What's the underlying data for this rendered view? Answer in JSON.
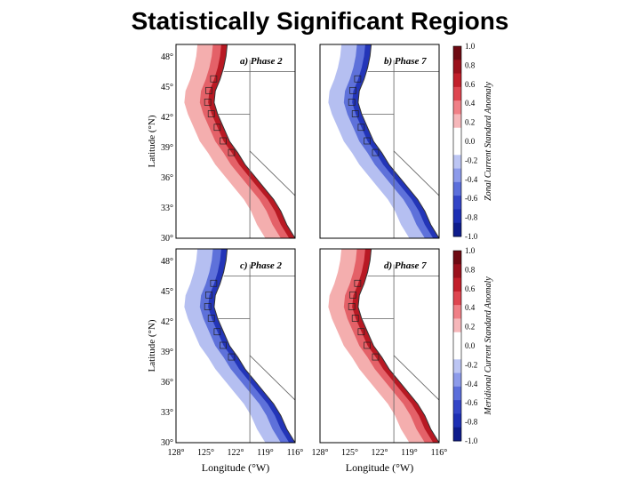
{
  "title": "Statistically Significant Regions",
  "panels": [
    {
      "label": "a) Phase 2",
      "component": "zonal",
      "pattern": "positive"
    },
    {
      "label": "b) Phase 7",
      "component": "zonal",
      "pattern": "negative"
    },
    {
      "label": "c) Phase 2",
      "component": "meridional",
      "pattern": "negative"
    },
    {
      "label": "d) Phase 7",
      "component": "meridional",
      "pattern": "positive"
    }
  ],
  "axes": {
    "ylabel": "Latitude (°N)",
    "xlabel": "Longitude (°W)",
    "lat_ticks": [
      "48°",
      "45°",
      "42°",
      "39°",
      "36°",
      "33°",
      "30°"
    ],
    "lon_ticks": [
      "128°",
      "125°",
      "122°",
      "119°",
      "116°"
    ]
  },
  "colorbars": [
    {
      "label": "Zonal Current Standard Anomaly",
      "ticks": [
        "1.0",
        "0.8",
        "0.6",
        "0.4",
        "0.2",
        "0.0",
        "-0.2",
        "-0.4",
        "-0.6",
        "-0.8",
        "-1.0"
      ]
    },
    {
      "label": "Meridional Current Standard Anomaly",
      "ticks": [
        "1.0",
        "0.8",
        "0.6",
        "0.4",
        "0.2",
        "0.0",
        "-0.2",
        "-0.4",
        "-0.6",
        "-0.8",
        "-1.0"
      ]
    }
  ],
  "colors": {
    "positive_strong": "#b3121c",
    "positive_light": "#f2a0a0",
    "negative_strong": "#1d2fb4",
    "negative_light": "#a8b4ee",
    "land_border": "#606060"
  }
}
